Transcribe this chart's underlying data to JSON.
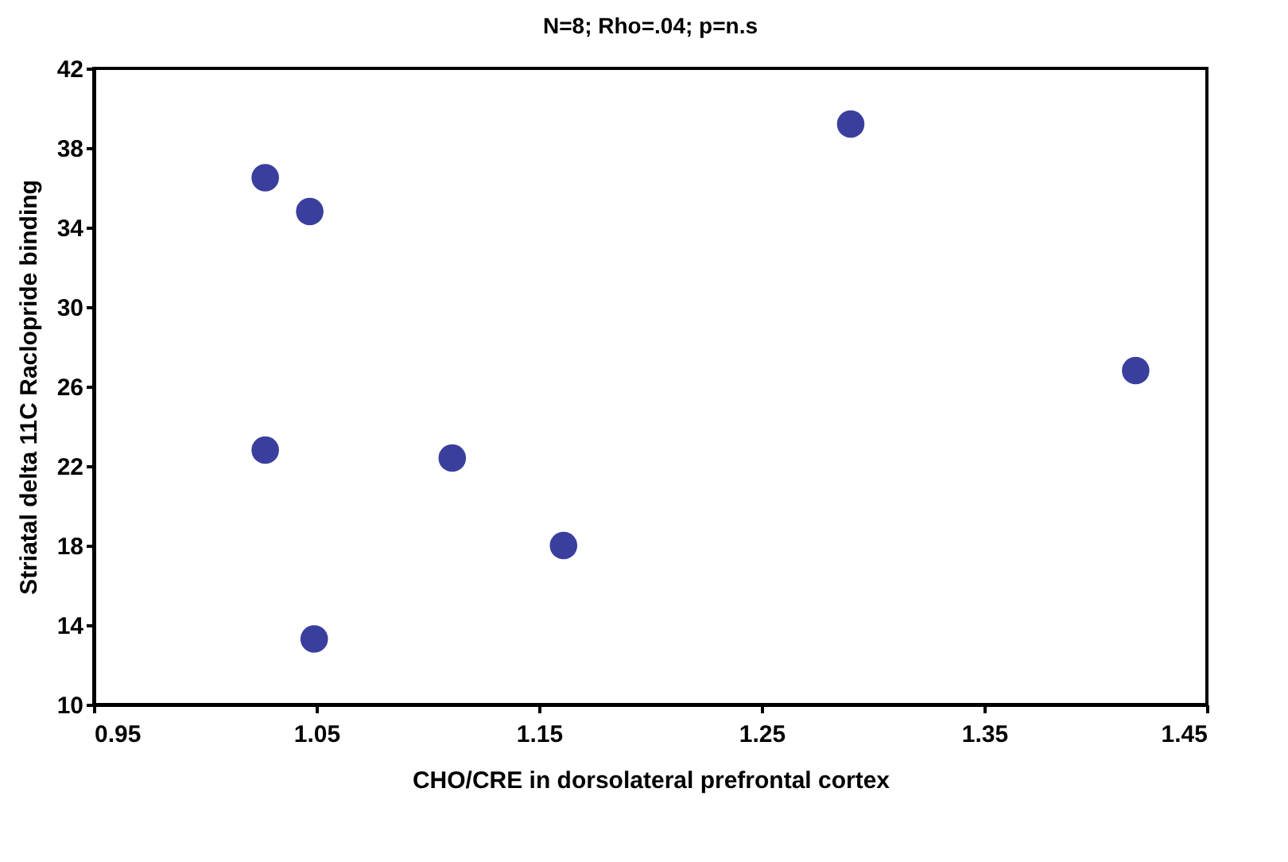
{
  "chart_data": {
    "type": "scatter",
    "title": "N=8; Rho=.04; p=n.s",
    "xlabel": "CHO/CRE in dorsolateral prefrontal cortex",
    "ylabel": "Striatal delta 11C Raclopride binding",
    "x": [
      1.027,
      1.047,
      1.027,
      1.111,
      1.161,
      1.049,
      1.29,
      1.418
    ],
    "series": [
      {
        "color": "#3a3f9e",
        "values": [
          36.5,
          34.8,
          22.8,
          22.4,
          18.0,
          13.3,
          39.2,
          26.8
        ]
      }
    ],
    "xlim": [
      0.95,
      1.45
    ],
    "xticks": [
      {
        "value": 0.95,
        "label": "0.95"
      },
      {
        "value": 1.05,
        "label": "1.05"
      },
      {
        "value": 1.15,
        "label": "1.15"
      },
      {
        "value": 1.25,
        "label": "1.25"
      },
      {
        "value": 1.35,
        "label": "1.35"
      },
      {
        "value": 1.45,
        "label": "1.45"
      }
    ],
    "ylim": [
      10,
      42
    ],
    "yticks": [
      10,
      14,
      18,
      22,
      26,
      30,
      34,
      38,
      42
    ],
    "grid": false,
    "legend": false,
    "marker": "circle"
  }
}
